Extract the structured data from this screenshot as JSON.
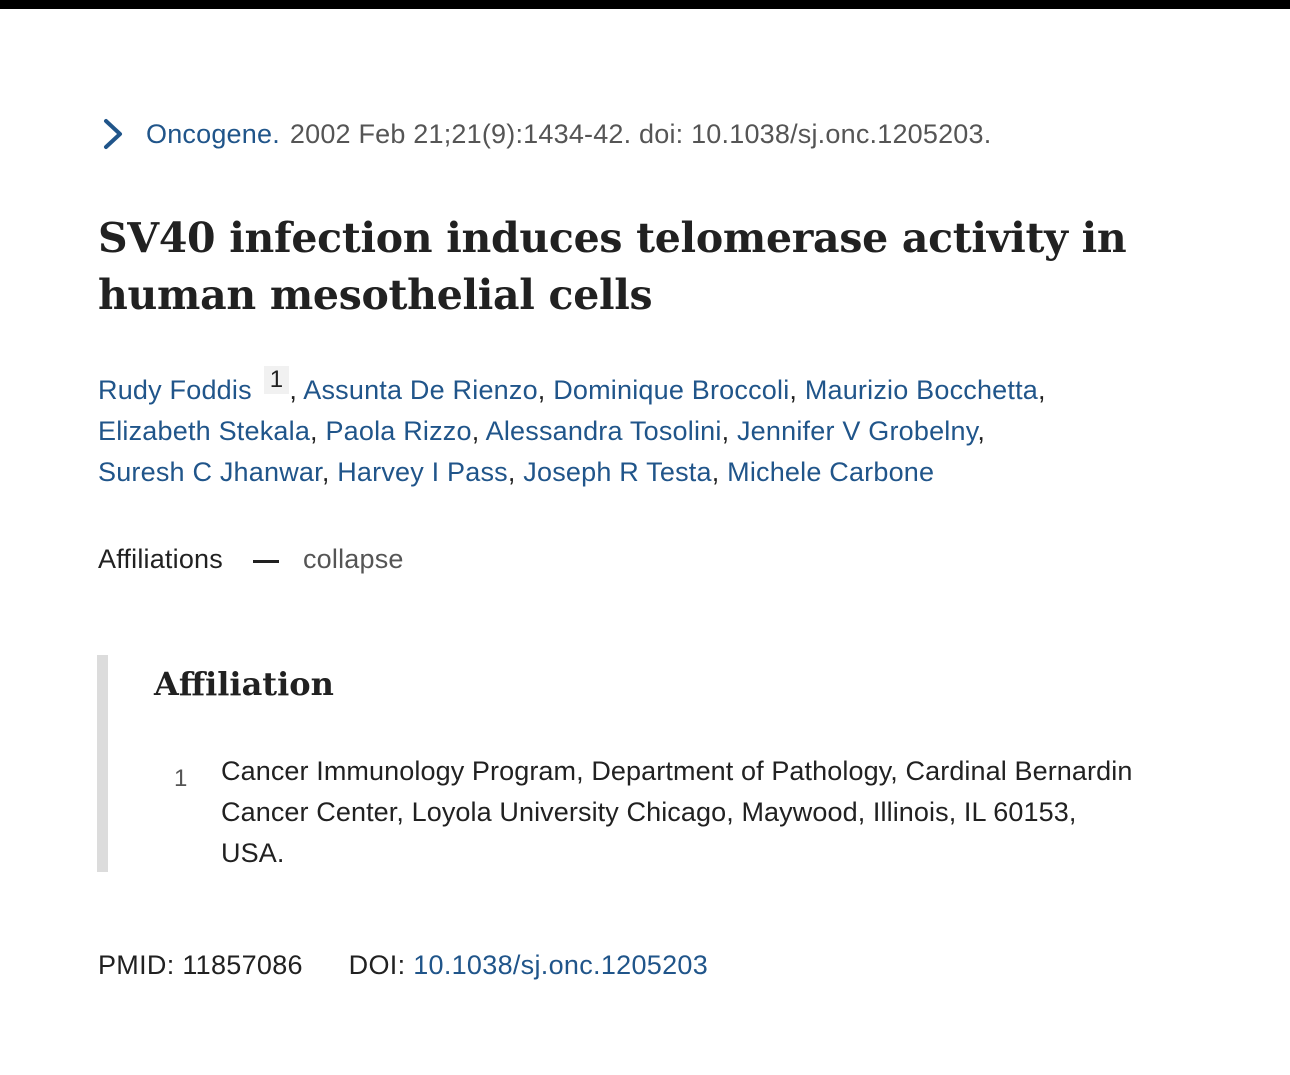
{
  "citation": {
    "journal": "Oncogene.",
    "details": "2002 Feb 21;21(9):1434-42. doi: 10.1038/sj.onc.1205203."
  },
  "title": "SV40 infection induces telomerase activity in human mesothelial cells",
  "authors": [
    {
      "name": "Rudy Foddis",
      "sup": "1"
    },
    {
      "name": "Assunta De Rienzo"
    },
    {
      "name": "Dominique Broccoli"
    },
    {
      "name": "Maurizio Bocchetta"
    },
    {
      "name": "Elizabeth Stekala"
    },
    {
      "name": "Paola Rizzo"
    },
    {
      "name": "Alessandra Tosolini"
    },
    {
      "name": "Jennifer V Grobelny"
    },
    {
      "name": "Suresh C Jhanwar"
    },
    {
      "name": "Harvey I Pass"
    },
    {
      "name": "Joseph R Testa"
    },
    {
      "name": "Michele Carbone"
    }
  ],
  "affiliations_toggle": {
    "label": "Affiliations",
    "action": "collapse"
  },
  "affiliation": {
    "heading": "Affiliation",
    "items": [
      {
        "num": "1",
        "text": "Cancer Immunology Program, Department of Pathology, Cardinal Bernardin Cancer Center, Loyola University Chicago, Maywood, Illinois, IL 60153, USA."
      }
    ]
  },
  "identifiers": {
    "pmid_label": "PMID:",
    "pmid": "11857086",
    "doi_label": "DOI:",
    "doi": "10.1038/sj.onc.1205203"
  },
  "colors": {
    "link": "#20558a",
    "text": "#212121",
    "muted": "#555555",
    "rule": "#dcdcdc"
  }
}
